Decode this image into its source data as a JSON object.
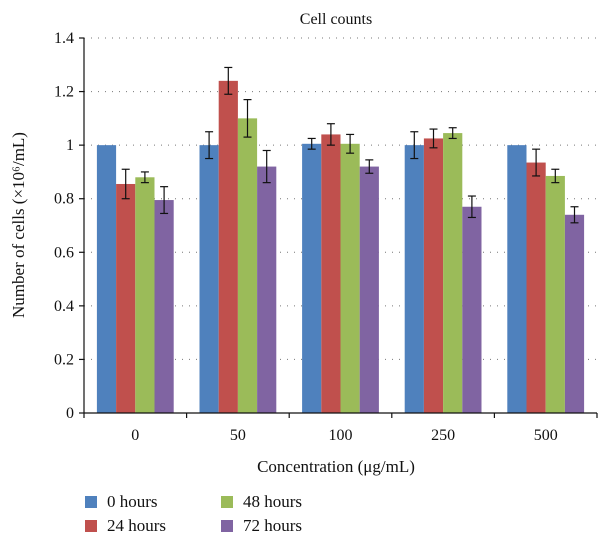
{
  "chart_data": {
    "type": "bar",
    "title": "Cell counts",
    "xlabel": "Concentration (μg/mL)",
    "ylabel": "Number of cells (×10⁶/mL)",
    "categories": [
      "0",
      "50",
      "100",
      "250",
      "500"
    ],
    "ylim": [
      0,
      1.4
    ],
    "yticks": [
      0,
      0.2,
      0.4,
      0.6,
      0.8,
      1,
      1.2,
      1.4
    ],
    "ytick_labels": [
      "0",
      "0.2",
      "0.4",
      "0.6",
      "0.8",
      "1",
      "1.2",
      "1.4"
    ],
    "grid": "dotted horizontal",
    "legend": "bottom",
    "series": [
      {
        "name": "0 hours",
        "color": "#4f81bd",
        "values": [
          1.0,
          1.0,
          1.005,
          1.0,
          1.0
        ],
        "errors": [
          0,
          0.05,
          0.02,
          0.05,
          0
        ]
      },
      {
        "name": "24 hours",
        "color": "#c0504d",
        "values": [
          0.855,
          1.24,
          1.04,
          1.025,
          0.935
        ],
        "errors": [
          0.055,
          0.05,
          0.04,
          0.035,
          0.05
        ]
      },
      {
        "name": "48 hours",
        "color": "#9bbb59",
        "values": [
          0.88,
          1.1,
          1.005,
          1.045,
          0.885
        ],
        "errors": [
          0.02,
          0.07,
          0.035,
          0.02,
          0.025
        ]
      },
      {
        "name": "72 hours",
        "color": "#8064a2",
        "values": [
          0.795,
          0.92,
          0.92,
          0.77,
          0.74
        ],
        "errors": [
          0.05,
          0.06,
          0.025,
          0.04,
          0.03
        ]
      }
    ]
  }
}
